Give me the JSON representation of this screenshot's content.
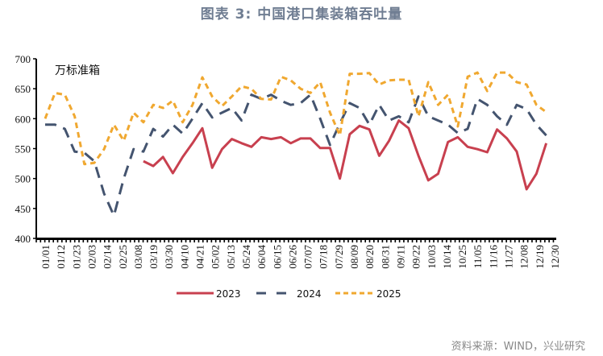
{
  "title": "图表 3:  中国港口集装箱吞吐量",
  "source": "资料来源：WIND，兴业研究",
  "chart_data": {
    "type": "line",
    "unit_label": "万标准箱",
    "ylim": [
      400,
      700
    ],
    "yticks": [
      400,
      450,
      500,
      550,
      600,
      650,
      700
    ],
    "xlim": [
      "01/01",
      "12/30"
    ],
    "xticks": [
      "01/01",
      "01/12",
      "01/23",
      "02/03",
      "02/14",
      "02/25",
      "03/08",
      "03/19",
      "03/30",
      "04/10",
      "04/21",
      "05/02",
      "05/13",
      "05/24",
      "06/04",
      "06/15",
      "06/26",
      "07/07",
      "07/18",
      "07/29",
      "08/09",
      "08/20",
      "08/31",
      "09/11",
      "09/22",
      "10/03",
      "10/14",
      "10/25",
      "11/05",
      "11/16",
      "11/27",
      "12/08",
      "12/19",
      "12/30"
    ],
    "grid": false,
    "legend": "bottom",
    "x": [
      "01/01",
      "01/08",
      "01/15",
      "01/22",
      "01/29",
      "02/05",
      "02/12",
      "02/19",
      "02/26",
      "03/05",
      "03/12",
      "03/19",
      "03/26",
      "04/02",
      "04/09",
      "04/16",
      "04/23",
      "04/30",
      "05/07",
      "05/14",
      "05/21",
      "05/28",
      "06/04",
      "06/11",
      "06/18",
      "06/25",
      "07/02",
      "07/09",
      "07/16",
      "07/23",
      "07/30",
      "08/06",
      "08/13",
      "08/20",
      "08/27",
      "09/03",
      "09/10",
      "09/17",
      "09/24",
      "10/01",
      "10/08",
      "10/15",
      "10/22",
      "10/29",
      "11/05",
      "11/12",
      "11/19",
      "11/26",
      "12/03",
      "12/10",
      "12/17",
      "12/24"
    ],
    "series": [
      {
        "name": "2023",
        "color": "#c8404f",
        "style": "solid",
        "values": [
          null,
          null,
          null,
          null,
          null,
          null,
          null,
          null,
          null,
          null,
          529,
          521,
          536,
          509,
          536,
          559,
          584,
          518,
          549,
          566,
          559,
          553,
          569,
          566,
          569,
          559,
          567,
          567,
          551,
          551,
          500,
          574,
          588,
          582,
          538,
          563,
          597,
          584,
          538,
          497,
          508,
          561,
          569,
          553,
          549,
          544,
          582,
          567,
          545,
          482,
          508,
          559
        ]
      },
      {
        "name": "2024",
        "color": "#44546f",
        "style": "long-dash",
        "values": [
          590,
          590,
          583,
          545,
          543,
          529,
          475,
          438,
          500,
          549,
          545,
          583,
          570,
          590,
          575,
          600,
          626,
          602,
          610,
          618,
          597,
          640,
          633,
          640,
          630,
          623,
          626,
          640,
          600,
          556,
          592,
          626,
          618,
          590,
          623,
          597,
          604,
          594,
          637,
          604,
          597,
          590,
          576,
          583,
          633,
          623,
          604,
          590,
          623,
          616,
          590,
          572
        ]
      },
      {
        "name": "2025",
        "color": "#f0a830",
        "style": "short-dash",
        "values": [
          600,
          643,
          640,
          604,
          524,
          526,
          549,
          590,
          563,
          610,
          594,
          623,
          618,
          630,
          594,
          623,
          669,
          637,
          621,
          637,
          654,
          650,
          633,
          632,
          670,
          664,
          650,
          643,
          661,
          610,
          572,
          675,
          675,
          676,
          657,
          664,
          665,
          665,
          604,
          661,
          623,
          640,
          587,
          670,
          677,
          646,
          677,
          677,
          661,
          657,
          623,
          611
        ]
      }
    ]
  }
}
